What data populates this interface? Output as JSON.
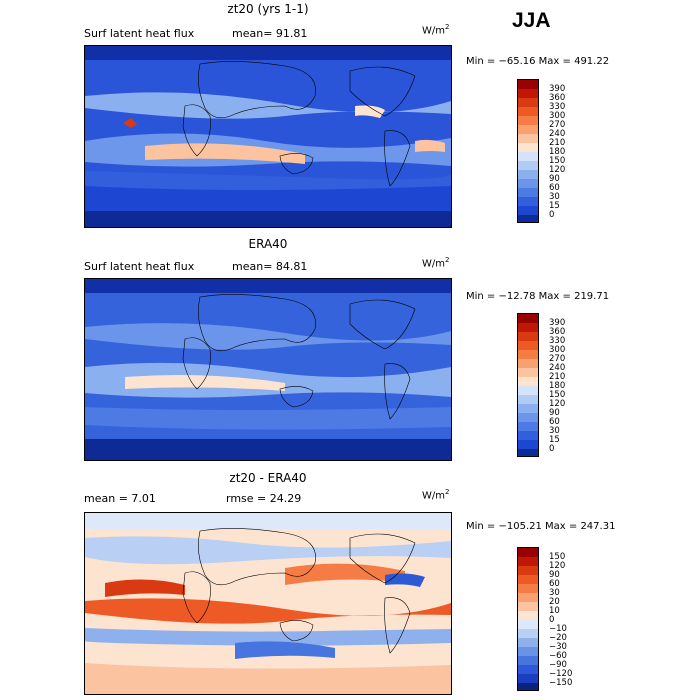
{
  "season": "JJA",
  "panels": [
    {
      "title": "zt20 (yrs 1-1)",
      "left_text": "Surf latent heat flux",
      "mid_text": "mean=  91.81",
      "units_base": "W/m",
      "units_exp": "2",
      "minmax": "Min = −65.16 Max = 491.22",
      "colorbar_labels": [
        "390",
        "360",
        "330",
        "300",
        "270",
        "240",
        "210",
        "180",
        "150",
        "120",
        "90",
        "60",
        "30",
        "15",
        "0"
      ],
      "colorbar_colors": [
        "#990000",
        "#c01806",
        "#d93a12",
        "#ee5a25",
        "#f57d45",
        "#f9a070",
        "#fbc3a0",
        "#fde4d1",
        "#d4e3f8",
        "#b0cbf4",
        "#8bb0ef",
        "#6a95ea",
        "#4d7ae3",
        "#325fdb",
        "#1d46d2",
        "#0a2d97"
      ]
    },
    {
      "title": "ERA40",
      "left_text": "Surf latent heat flux",
      "mid_text": "mean=  84.81",
      "units_base": "W/m",
      "units_exp": "2",
      "minmax": "Min = −12.78 Max = 219.71",
      "colorbar_labels": [
        "390",
        "360",
        "330",
        "300",
        "270",
        "240",
        "210",
        "180",
        "150",
        "120",
        "90",
        "60",
        "30",
        "15",
        "0"
      ],
      "colorbar_colors": [
        "#990000",
        "#c01806",
        "#d93a12",
        "#ee5a25",
        "#f57d45",
        "#f9a070",
        "#fbc3a0",
        "#fde4d1",
        "#d4e3f8",
        "#b0cbf4",
        "#8bb0ef",
        "#6a95ea",
        "#4d7ae3",
        "#325fdb",
        "#1d46d2",
        "#0a2d97"
      ]
    },
    {
      "title": "zt20 - ERA40",
      "left_text": "mean =    7.01",
      "mid_text": "rmse =  24.29",
      "units_base": "W/m",
      "units_exp": "2",
      "minmax": "Min = −105.21 Max = 247.31",
      "colorbar_labels": [
        "150",
        "120",
        "90",
        "60",
        "30",
        "20",
        "10",
        "0",
        "−10",
        "−20",
        "−30",
        "−60",
        "−90",
        "−120",
        "−150"
      ],
      "colorbar_colors": [
        "#990000",
        "#c01806",
        "#d93a12",
        "#ee5a25",
        "#f57d45",
        "#f9a070",
        "#fbc3a0",
        "#fde4d1",
        "#dde9f8",
        "#b9d0f4",
        "#8eb1ee",
        "#6a93e8",
        "#4775e0",
        "#2d58d6",
        "#1b3ec0",
        "#0a237f"
      ]
    }
  ],
  "chart_data": [
    {
      "type": "heatmap",
      "title": "zt20 (yrs 1-1)",
      "subtitle": "Surf latent heat flux",
      "units": "W/m2",
      "mean": 91.81,
      "min": -65.16,
      "max": 491.22,
      "colorbar_levels": [
        0,
        15,
        30,
        60,
        90,
        120,
        150,
        180,
        210,
        240,
        270,
        300,
        330,
        360,
        390
      ]
    },
    {
      "type": "heatmap",
      "title": "ERA40",
      "subtitle": "Surf latent heat flux",
      "units": "W/m2",
      "mean": 84.81,
      "min": -12.78,
      "max": 219.71,
      "colorbar_levels": [
        0,
        15,
        30,
        60,
        90,
        120,
        150,
        180,
        210,
        240,
        270,
        300,
        330,
        360,
        390
      ]
    },
    {
      "type": "heatmap",
      "title": "zt20 - ERA40",
      "units": "W/m2",
      "mean": 7.01,
      "rmse": 24.29,
      "min": -105.21,
      "max": 247.31,
      "colorbar_levels": [
        -150,
        -120,
        -90,
        -60,
        -30,
        -20,
        -10,
        0,
        10,
        20,
        30,
        60,
        90,
        120,
        150
      ]
    }
  ]
}
